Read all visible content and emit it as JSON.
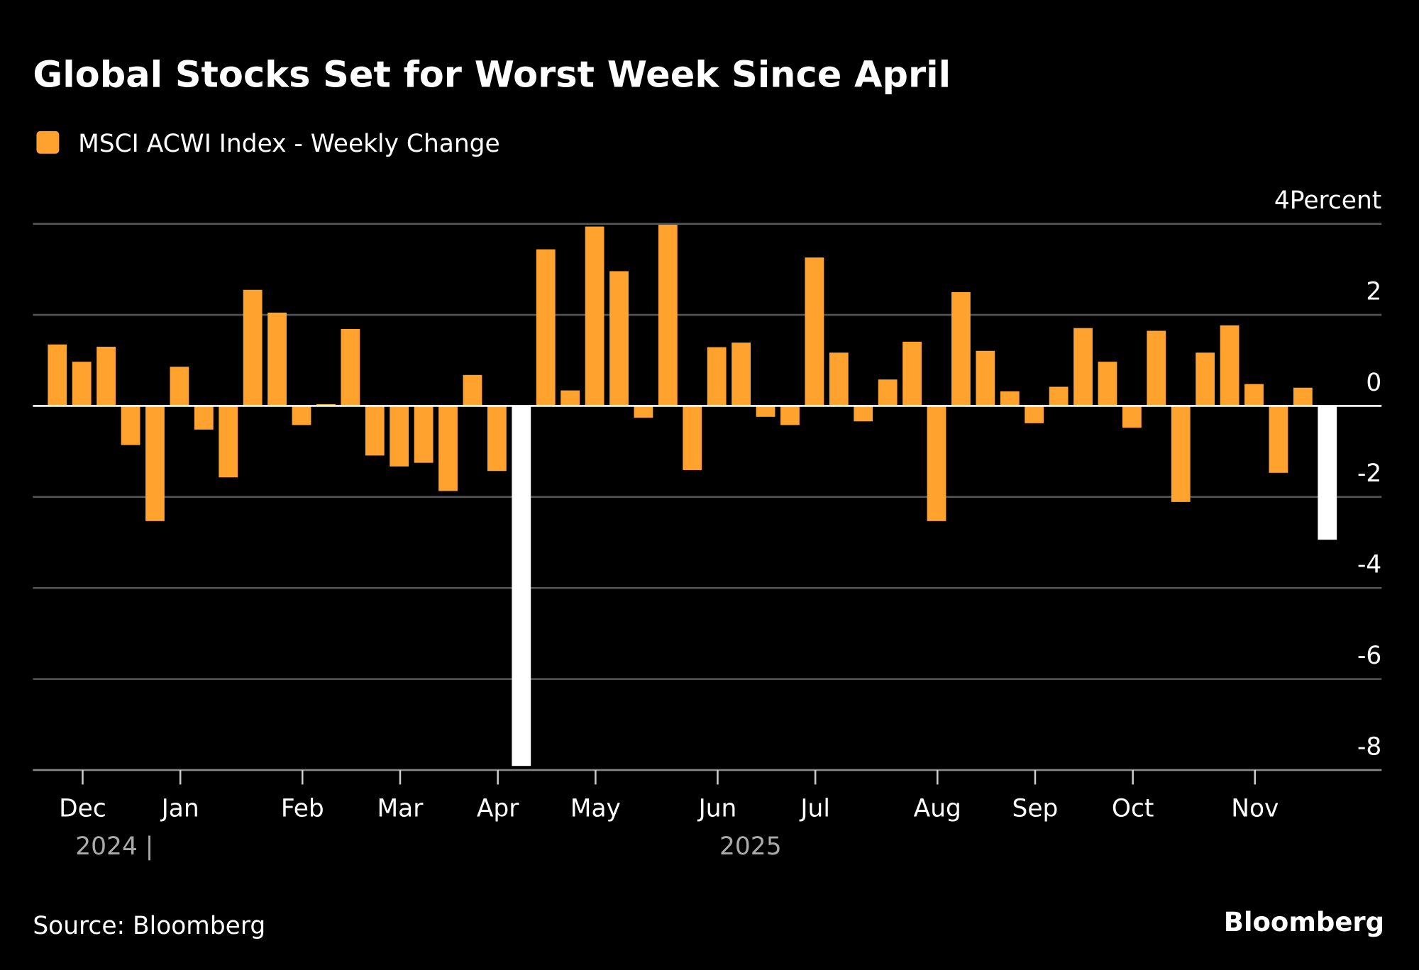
{
  "chart_data": {
    "type": "bar",
    "title": "Global Stocks Set for Worst Week Since April",
    "legend": [
      {
        "label": "MSCI ACWI Index - Weekly Change",
        "color": "#FFA22E"
      }
    ],
    "legend_placement": "top-left",
    "ylabel": "Percent",
    "ylim": [
      -8,
      4
    ],
    "yticks": [
      4,
      2,
      0,
      -2,
      -4,
      -6,
      -8
    ],
    "ytick_labels": [
      "4Percent",
      "2",
      "0",
      "-2",
      "-4",
      "-6",
      "-8"
    ],
    "grid": true,
    "x_month_ticks": [
      {
        "label": "Dec",
        "week_index": 1
      },
      {
        "label": "Jan",
        "week_index": 5
      },
      {
        "label": "Feb",
        "week_index": 10
      },
      {
        "label": "Mar",
        "week_index": 14
      },
      {
        "label": "Apr",
        "week_index": 18
      },
      {
        "label": "May",
        "week_index": 22
      },
      {
        "label": "Jun",
        "week_index": 27
      },
      {
        "label": "Jul",
        "week_index": 31
      },
      {
        "label": "Aug",
        "week_index": 36
      },
      {
        "label": "Sep",
        "week_index": 40
      },
      {
        "label": "Oct",
        "week_index": 44
      },
      {
        "label": "Nov",
        "week_index": 49
      }
    ],
    "year_labels": [
      "2024 |",
      "2025"
    ],
    "values": [
      1.35,
      0.97,
      1.3,
      -0.86,
      -2.53,
      0.86,
      -0.52,
      -1.57,
      2.55,
      2.05,
      -0.42,
      0.04,
      1.69,
      -1.09,
      -1.33,
      -1.25,
      -1.87,
      0.68,
      -1.43,
      -7.91,
      3.44,
      0.34,
      3.94,
      2.96,
      -0.26,
      3.98,
      -1.41,
      1.29,
      1.39,
      -0.24,
      -0.42,
      3.26,
      1.17,
      -0.34,
      0.58,
      1.41,
      -2.53,
      2.5,
      1.21,
      0.32,
      -0.38,
      0.42,
      1.71,
      0.97,
      -0.48,
      1.65,
      -2.11,
      1.17,
      1.77,
      0.48,
      -1.47,
      0.4,
      -2.94
    ],
    "highlighted_indices": [
      19,
      52
    ],
    "colors": {
      "bar": "#FFA22E",
      "highlight": "#FFFFFF",
      "grid": "#555555",
      "zero": "#FFFFFF"
    }
  },
  "footer": {
    "source": "Source: Bloomberg",
    "brand": "Bloomberg"
  }
}
